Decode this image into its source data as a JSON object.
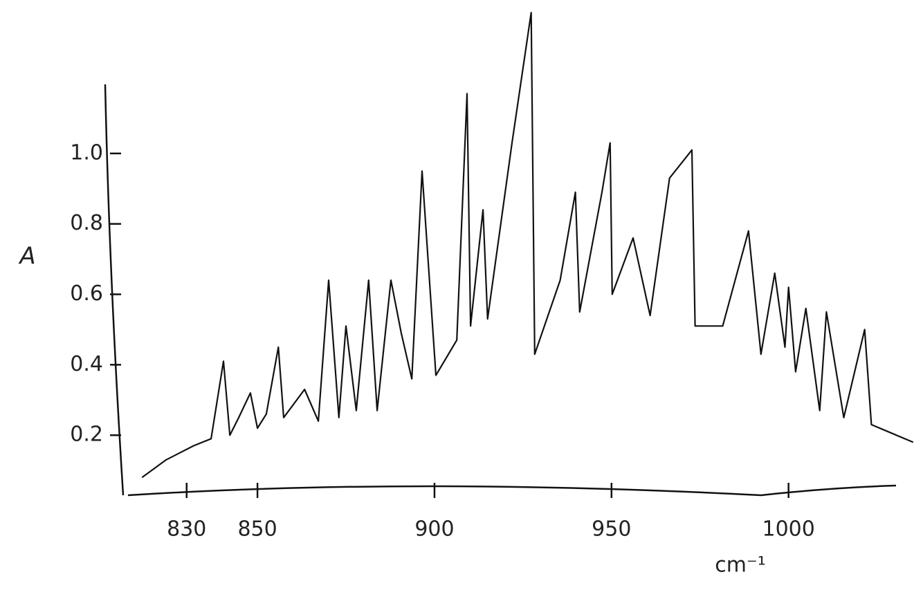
{
  "chart_data": {
    "type": "line",
    "y_label": "A",
    "x_label": "cm⁻¹",
    "color": "#111111",
    "x": [
      817.4,
      824.2,
      832.0,
      836.9,
      840.4,
      842.2,
      844.7,
      848.0,
      850.0,
      852.5,
      855.9,
      857.4,
      863.3,
      867.2,
      870.1,
      873.0,
      875.0,
      877.9,
      881.4,
      883.8,
      887.7,
      890.6,
      893.6,
      896.5,
      900.4,
      906.3,
      909.2,
      910.2,
      913.7,
      915.0,
      921.9,
      927.3,
      928.3,
      935.5,
      939.8,
      941.0,
      947.3,
      949.6,
      950.2,
      956.1,
      960.9,
      966.4,
      972.7,
      973.6,
      981.4,
      988.7,
      992.2,
      996.1,
      999.0,
      1000.0,
      1002.0,
      1004.9,
      1008.8,
      1010.7,
      1015.6,
      1021.5,
      1023.4,
      1035.2
    ],
    "values": [
      0.08,
      0.13,
      0.17,
      0.19,
      0.41,
      0.2,
      0.25,
      0.32,
      0.22,
      0.26,
      0.45,
      0.25,
      0.33,
      0.24,
      0.64,
      0.25,
      0.51,
      0.27,
      0.64,
      0.27,
      0.64,
      0.49,
      0.36,
      0.95,
      0.37,
      0.47,
      1.17,
      0.51,
      0.84,
      0.53,
      1.03,
      1.4,
      0.43,
      0.64,
      0.89,
      0.55,
      0.89,
      1.03,
      0.6,
      0.76,
      0.54,
      0.93,
      1.01,
      0.51,
      0.51,
      0.78,
      0.43,
      0.66,
      0.45,
      0.62,
      0.38,
      0.56,
      0.27,
      0.55,
      0.25,
      0.5,
      0.23,
      0.18
    ],
    "xlim": [
      815,
      1037
    ],
    "ylim": [
      0,
      1.42
    ],
    "xticks": [
      830,
      850,
      900,
      950,
      1000
    ],
    "yticks": [
      0.2,
      0.4,
      0.6,
      0.8,
      {
        "value": 1,
        "label": "1.0"
      }
    ],
    "grid": false
  }
}
